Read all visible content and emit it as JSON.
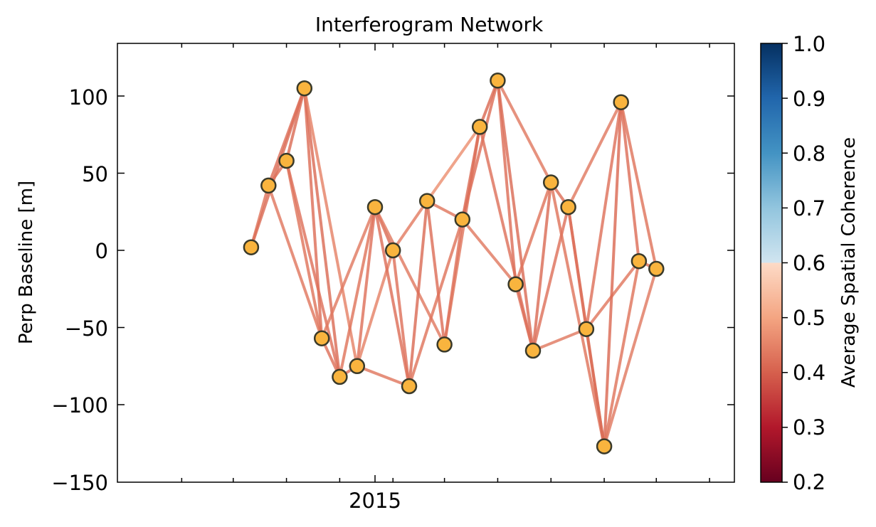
{
  "chart_data": {
    "type": "scatter",
    "title": "Interferogram Network",
    "xlabel": "",
    "ylabel": "Perp Baseline [m]",
    "x_ticks": [
      "2015"
    ],
    "y_ticks": [
      "100",
      "50",
      "0",
      "−50",
      "−100",
      "−150"
    ],
    "ylim": [
      -150,
      135
    ],
    "colorbar": {
      "label": "Average Spatial Coherence",
      "range": [
        0.2,
        1.0
      ],
      "ticks": [
        "1.0",
        "0.9",
        "0.8",
        "0.7",
        "0.6",
        "0.5",
        "0.4",
        "0.3",
        "0.2"
      ],
      "colormap": "RdBu",
      "visible_from": 0.7,
      "visible_colors": [
        "#053061",
        "#2166ac",
        "#4393c3",
        "#92c5de",
        "#d1e5f0",
        "#f4a582",
        "#d6604d",
        "#b2182b",
        "#67001f"
      ]
    },
    "acquisitions": [
      {
        "id": 0,
        "date": "2014-06-01",
        "bperp": 2
      },
      {
        "id": 1,
        "date": "2014-07-01",
        "bperp": 42
      },
      {
        "id": 2,
        "date": "2014-08-01",
        "bperp": 58
      },
      {
        "id": 3,
        "date": "2014-09-01",
        "bperp": 105
      },
      {
        "id": 4,
        "date": "2014-10-01",
        "bperp": -57
      },
      {
        "id": 5,
        "date": "2014-11-01",
        "bperp": -82
      },
      {
        "id": 6,
        "date": "2014-12-01",
        "bperp": -75
      },
      {
        "id": 7,
        "date": "2015-01-01",
        "bperp": 28
      },
      {
        "id": 8,
        "date": "2015-02-01",
        "bperp": 0
      },
      {
        "id": 9,
        "date": "2015-03-01",
        "bperp": -88
      },
      {
        "id": 10,
        "date": "2015-04-01",
        "bperp": 32
      },
      {
        "id": 11,
        "date": "2015-05-01",
        "bperp": -61
      },
      {
        "id": 12,
        "date": "2015-06-01",
        "bperp": 20
      },
      {
        "id": 13,
        "date": "2015-07-01",
        "bperp": 80
      },
      {
        "id": 14,
        "date": "2015-08-01",
        "bperp": 110
      },
      {
        "id": 15,
        "date": "2015-09-01",
        "bperp": -22
      },
      {
        "id": 16,
        "date": "2015-10-01",
        "bperp": -65
      },
      {
        "id": 17,
        "date": "2015-11-01",
        "bperp": 44
      },
      {
        "id": 18,
        "date": "2015-12-01",
        "bperp": 28
      },
      {
        "id": 19,
        "date": "2016-01-01",
        "bperp": -51
      },
      {
        "id": 20,
        "date": "2016-02-01",
        "bperp": -127
      },
      {
        "id": 21,
        "date": "2016-03-01",
        "bperp": 96
      },
      {
        "id": 22,
        "date": "2016-04-01",
        "bperp": -7
      },
      {
        "id": 23,
        "date": "2016-05-01",
        "bperp": -12
      }
    ],
    "pairs": [
      [
        0,
        1,
        0.45
      ],
      [
        0,
        3,
        0.42
      ],
      [
        1,
        2,
        0.44
      ],
      [
        1,
        3,
        0.43
      ],
      [
        1,
        4,
        0.46
      ],
      [
        2,
        3,
        0.42
      ],
      [
        2,
        4,
        0.45
      ],
      [
        2,
        5,
        0.44
      ],
      [
        3,
        4,
        0.43
      ],
      [
        3,
        5,
        0.42
      ],
      [
        3,
        6,
        0.5
      ],
      [
        4,
        5,
        0.44
      ],
      [
        4,
        7,
        0.47
      ],
      [
        5,
        6,
        0.43
      ],
      [
        5,
        7,
        0.45
      ],
      [
        6,
        7,
        0.44
      ],
      [
        6,
        8,
        0.5
      ],
      [
        6,
        9,
        0.46
      ],
      [
        7,
        8,
        0.42
      ],
      [
        7,
        9,
        0.43
      ],
      [
        7,
        11,
        0.47
      ],
      [
        8,
        9,
        0.44
      ],
      [
        8,
        10,
        0.48
      ],
      [
        9,
        10,
        0.42
      ],
      [
        9,
        12,
        0.45
      ],
      [
        10,
        11,
        0.43
      ],
      [
        10,
        12,
        0.46
      ],
      [
        10,
        13,
        0.55
      ],
      [
        11,
        12,
        0.44
      ],
      [
        11,
        13,
        0.45
      ],
      [
        12,
        13,
        0.42
      ],
      [
        12,
        14,
        0.43
      ],
      [
        12,
        15,
        0.47
      ],
      [
        13,
        14,
        0.41
      ],
      [
        13,
        16,
        0.44
      ],
      [
        14,
        15,
        0.43
      ],
      [
        14,
        16,
        0.42
      ],
      [
        14,
        17,
        0.47
      ],
      [
        15,
        16,
        0.43
      ],
      [
        15,
        17,
        0.45
      ],
      [
        16,
        17,
        0.42
      ],
      [
        16,
        18,
        0.44
      ],
      [
        16,
        19,
        0.47
      ],
      [
        17,
        18,
        0.43
      ],
      [
        17,
        20,
        0.45
      ],
      [
        18,
        19,
        0.44
      ],
      [
        18,
        20,
        0.43
      ],
      [
        18,
        21,
        0.47
      ],
      [
        19,
        20,
        0.42
      ],
      [
        19,
        21,
        0.44
      ],
      [
        19,
        22,
        0.46
      ],
      [
        20,
        21,
        0.41
      ],
      [
        20,
        22,
        0.45
      ],
      [
        20,
        23,
        0.47
      ],
      [
        21,
        22,
        0.43
      ],
      [
        21,
        23,
        0.45
      ],
      [
        22,
        23,
        0.44
      ]
    ]
  }
}
